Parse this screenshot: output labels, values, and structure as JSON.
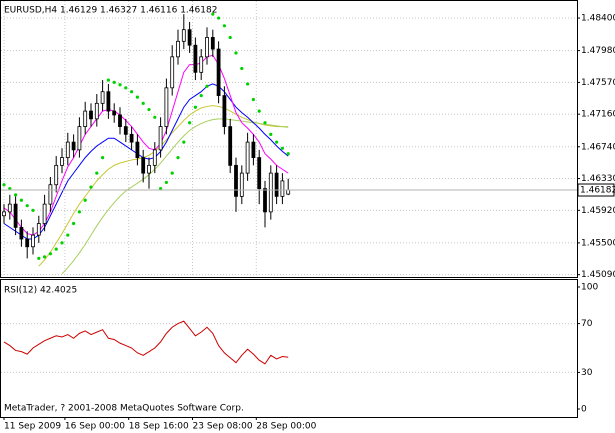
{
  "chart_data": [
    {
      "type": "candlestick",
      "title": "EURUSD,H4  1.46129 1.46327 1.46116 1.46182",
      "open": [
        1.4585,
        1.459,
        1.46,
        1.457,
        1.4555,
        1.4545,
        1.456,
        1.4575,
        1.46,
        1.4625,
        1.465,
        1.466,
        1.468,
        1.467,
        1.47,
        1.472,
        1.471,
        1.473,
        1.4745,
        1.472,
        1.4715,
        1.47,
        1.469,
        1.468,
        1.466,
        1.464,
        1.465,
        1.467,
        1.47,
        1.475,
        1.479,
        1.481,
        1.4825,
        1.4805,
        1.477,
        1.479,
        1.4815,
        1.48,
        1.474,
        1.47,
        1.465,
        1.461,
        1.464,
        1.468,
        1.466,
        1.462,
        1.459,
        1.464,
        1.461,
        1.46129
      ],
      "high": [
        1.46,
        1.4612,
        1.461,
        1.458,
        1.4565,
        1.457,
        1.4585,
        1.4612,
        1.4635,
        1.4662,
        1.4672,
        1.4692,
        1.469,
        1.4712,
        1.4732,
        1.473,
        1.4742,
        1.476,
        1.4755,
        1.473,
        1.4725,
        1.471,
        1.47,
        1.469,
        1.467,
        1.466,
        1.468,
        1.4712,
        1.4762,
        1.4805,
        1.4825,
        1.4845,
        1.4835,
        1.4815,
        1.48,
        1.4828,
        1.4825,
        1.481,
        1.4752,
        1.471,
        1.466,
        1.465,
        1.4692,
        1.469,
        1.467,
        1.463,
        1.465,
        1.465,
        1.464,
        1.46327
      ],
      "low": [
        1.4575,
        1.458,
        1.456,
        1.4545,
        1.453,
        1.4535,
        1.455,
        1.4565,
        1.459,
        1.4615,
        1.464,
        1.465,
        1.466,
        1.466,
        1.469,
        1.47,
        1.47,
        1.472,
        1.471,
        1.4705,
        1.469,
        1.468,
        1.467,
        1.465,
        1.4628,
        1.462,
        1.464,
        1.466,
        1.469,
        1.474,
        1.478,
        1.48,
        1.4795,
        1.476,
        1.476,
        1.478,
        1.479,
        1.473,
        1.469,
        1.464,
        1.459,
        1.46,
        1.463,
        1.465,
        1.46,
        1.457,
        1.458,
        1.46,
        1.46,
        1.46116
      ],
      "close": [
        1.459,
        1.46,
        1.457,
        1.4555,
        1.4545,
        1.456,
        1.4575,
        1.46,
        1.4625,
        1.465,
        1.466,
        1.468,
        1.467,
        1.47,
        1.472,
        1.471,
        1.473,
        1.4745,
        1.472,
        1.4715,
        1.47,
        1.469,
        1.468,
        1.466,
        1.464,
        1.465,
        1.467,
        1.47,
        1.475,
        1.479,
        1.481,
        1.4825,
        1.4805,
        1.477,
        1.479,
        1.4815,
        1.48,
        1.474,
        1.47,
        1.465,
        1.461,
        1.464,
        1.468,
        1.466,
        1.462,
        1.459,
        1.464,
        1.461,
        1.463,
        1.46182
      ],
      "up_color": "#ffffff",
      "down_color": "#000000",
      "lines": [
        {
          "color": "#c8c832",
          "values": [
            null,
            null,
            null,
            null,
            null,
            null,
            1.452,
            1.4528,
            1.4538,
            1.455,
            1.4562,
            1.4575,
            1.4588,
            1.46,
            1.461,
            1.462,
            1.463,
            1.4638,
            1.4645,
            1.465,
            1.4653,
            1.4655,
            1.4657,
            1.4658,
            1.466,
            1.4663,
            1.4668,
            1.4675,
            1.4683,
            1.4692,
            1.47,
            1.4708,
            1.4715,
            1.472,
            1.4724,
            1.4726,
            1.4727,
            1.4726,
            1.4724,
            1.472,
            1.4716,
            1.4712,
            1.4709,
            1.4706,
            1.4704,
            1.4702,
            1.4701,
            1.47,
            1.47,
            1.47
          ]
        },
        {
          "color": "#a8d060",
          "values": [
            null,
            null,
            null,
            null,
            null,
            null,
            null,
            null,
            null,
            null,
            1.451,
            1.4518,
            1.4527,
            1.4537,
            1.4548,
            1.456,
            1.4572,
            1.4583,
            1.4593,
            1.4602,
            1.461,
            1.4617,
            1.4622,
            1.4627,
            1.4632,
            1.4638,
            1.4645,
            1.4653,
            1.4662,
            1.4671,
            1.468,
            1.4688,
            1.4695,
            1.47,
            1.4704,
            1.4707,
            1.4709,
            1.471,
            1.471,
            1.4709,
            1.4708,
            1.4707,
            1.4706,
            1.4705,
            1.4704,
            1.4703,
            1.4702,
            1.4701,
            1.47,
            1.4699
          ]
        },
        {
          "color": "#0000ff",
          "values": [
            1.4575,
            1.457,
            1.4565,
            1.456,
            1.4555,
            1.4555,
            1.456,
            1.457,
            1.4585,
            1.46,
            1.4615,
            1.463,
            1.464,
            1.465,
            1.466,
            1.4668,
            1.4675,
            1.468,
            1.4685,
            1.4685,
            1.468,
            1.4675,
            1.467,
            1.4665,
            1.466,
            1.4658,
            1.466,
            1.4668,
            1.468,
            1.4695,
            1.471,
            1.4725,
            1.4735,
            1.474,
            1.4745,
            1.4752,
            1.4755,
            1.4752,
            1.4745,
            1.4735,
            1.4725,
            1.4718,
            1.4712,
            1.4705,
            1.4698,
            1.469,
            1.4683,
            1.4675,
            1.4668,
            1.4662
          ]
        },
        {
          "color": "#ff00ff",
          "values": [
            1.4595,
            1.459,
            1.458,
            1.457,
            1.4562,
            1.456,
            1.4565,
            1.4575,
            1.459,
            1.461,
            1.463,
            1.4648,
            1.466,
            1.4675,
            1.469,
            1.47,
            1.471,
            1.472,
            1.4722,
            1.472,
            1.4715,
            1.4708,
            1.47,
            1.469,
            1.468,
            1.4672,
            1.467,
            1.4678,
            1.4695,
            1.472,
            1.4745,
            1.477,
            1.478,
            1.478,
            1.4782,
            1.479,
            1.4792,
            1.478,
            1.4762,
            1.474,
            1.4718,
            1.4705,
            1.4698,
            1.469,
            1.468,
            1.4665,
            1.4658,
            1.465,
            1.4645,
            1.464
          ]
        }
      ],
      "sar": {
        "color": "#00d200",
        "values": [
          1.4625,
          1.462,
          1.4612,
          1.4605,
          1.4598,
          1.4592,
          1.453,
          1.4532,
          1.4536,
          1.4542,
          1.455,
          1.456,
          1.4575,
          1.459,
          1.4605,
          1.4622,
          1.464,
          1.466,
          1.476,
          1.4757,
          1.4754,
          1.475,
          1.4745,
          1.4738,
          1.473,
          1.4722,
          1.4712,
          1.462,
          1.4628,
          1.464,
          1.466,
          1.468,
          1.4705,
          1.4725,
          1.474,
          1.4752,
          1.4845,
          1.484,
          1.483,
          1.4815,
          1.4795,
          1.4775,
          1.4755,
          1.4735,
          1.472,
          1.4705,
          1.469,
          1.468,
          1.4672,
          1.4665
        ]
      },
      "ylim": [
        1.4506,
        1.4862
      ],
      "yticks": [
        {
          "value": 1.4509,
          "label": "1.45090"
        },
        {
          "value": 1.455,
          "label": "1.45500"
        },
        {
          "value": 1.4592,
          "label": "1.45920"
        },
        {
          "value": 1.4633,
          "label": "1.46330"
        },
        {
          "value": 1.4674,
          "label": "1.46740"
        },
        {
          "value": 1.4716,
          "label": "1.47160"
        },
        {
          "value": 1.4757,
          "label": "1.47570"
        },
        {
          "value": 1.4798,
          "label": "1.47980"
        },
        {
          "value": 1.484,
          "label": "1.48400"
        }
      ],
      "xticks": [
        {
          "value": 0,
          "label": "11 Sep 2009"
        },
        {
          "value": 10.5,
          "label": "16 Sep 00:00"
        },
        {
          "value": 21.5,
          "label": "18 Sep 16:00"
        },
        {
          "value": 32.5,
          "label": "23 Sep 08:00"
        },
        {
          "value": 43.5,
          "label": "28 Sep 00:00"
        }
      ],
      "grid": true
    },
    {
      "type": "line",
      "title": "RSI(12) 42.4025",
      "color": "#cc0000",
      "values": [
        55,
        52,
        48,
        47,
        45,
        50,
        53,
        56,
        58,
        60,
        59,
        61,
        58,
        62,
        64,
        61,
        63,
        65,
        58,
        57,
        54,
        52,
        50,
        46,
        44,
        47,
        50,
        55,
        62,
        67,
        70,
        72,
        66,
        60,
        63,
        67,
        62,
        52,
        46,
        42,
        38,
        44,
        49,
        45,
        40,
        37,
        44,
        41,
        43,
        42.4025
      ],
      "ylim": [
        0,
        100
      ],
      "yticks": [
        0,
        30,
        70,
        100
      ],
      "grid": true
    }
  ],
  "footer": "MetaTrader, ? 2001-2008 MetaQuotes Software Corp."
}
